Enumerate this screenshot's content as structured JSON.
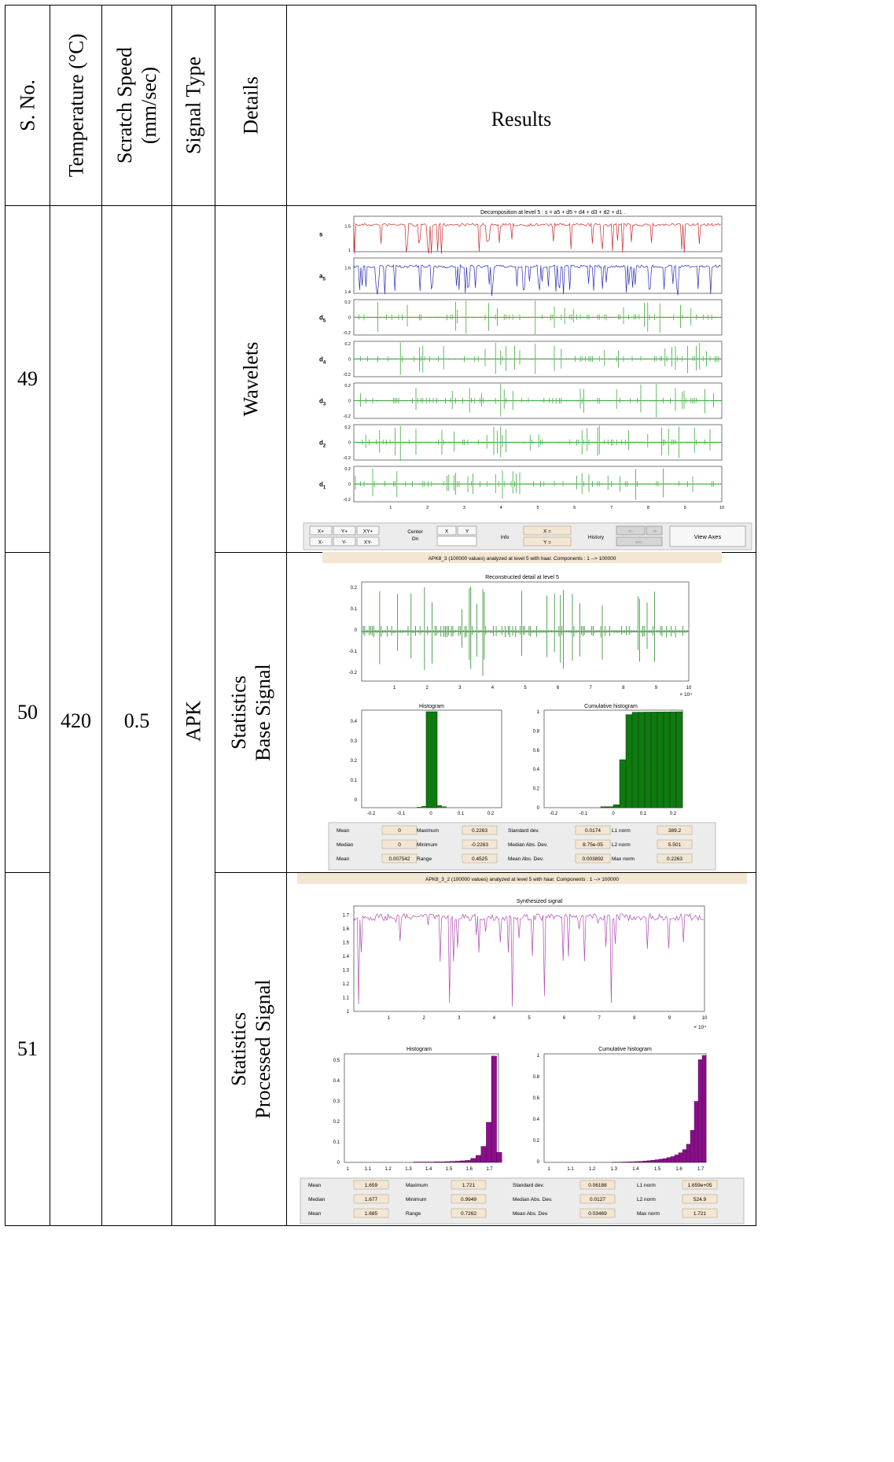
{
  "headers": {
    "sno": "S. No.",
    "temp": "Temperature (°C)",
    "speed1": "Scratch Speed",
    "speed2": "(mm/sec)",
    "signal": "Signal Type",
    "details": "Details",
    "results": "Results"
  },
  "rows": [
    {
      "sno": "49",
      "details": "Wavelets"
    },
    {
      "sno": "50",
      "details1": "Statistics",
      "details2": "Base Signal"
    },
    {
      "sno": "51",
      "details1": "Statistics",
      "details2": "Processed Signal"
    }
  ],
  "merged": {
    "temp": "420",
    "speed": "0.5",
    "signal": "APK"
  },
  "wavelet": {
    "title": "Decomposition at level 5 : s = a5 + d5 + d4 + d3 + d2 + d1 .",
    "labels": [
      "s",
      "a5",
      "d5",
      "d4",
      "d3",
      "d2",
      "d1"
    ],
    "xticks": [
      "1",
      "2",
      "3",
      "4",
      "5",
      "6",
      "7",
      "8",
      "9",
      "10"
    ],
    "colors": {
      "s": "#cc2a2a",
      "a5": "#2a2ab8",
      "d": "#1f9e1f"
    },
    "toolbar": {
      "xp": "X+",
      "yp": "Y+",
      "xyp": "XY+",
      "xm": "X-",
      "ym": "Y-",
      "xym": "XY-",
      "center": "Center",
      "on": "On",
      "x": "X",
      "y": "Y",
      "info": "Info",
      "xeq": "X =",
      "yeq": "Y =",
      "history": "History",
      "back": "<-",
      "fwd": "->",
      "back2": "<<-",
      "view": "View Axes"
    },
    "status": "APK8_3 (100000 values) analyzed at level 5 with haar.  Components :  1 --> 100000"
  },
  "base": {
    "title": "Reconstructed detail at level 5",
    "yticks": [
      "0.2",
      "0.1",
      "0",
      "-0.1",
      "-0.2"
    ],
    "xticks": [
      "1",
      "2",
      "3",
      "4",
      "5",
      "6",
      "7",
      "8",
      "9",
      "10"
    ],
    "exp": "× 10⁴",
    "hist_title": "Histogram",
    "cum_title": "Cumulative histogram",
    "hist_yticks": [
      "0.4",
      "0.3",
      "0.2",
      "0.1",
      "0"
    ],
    "cum_yticks": [
      "1",
      "0.8",
      "0.6",
      "0.4",
      "0.2",
      "0"
    ],
    "hist_xticks": [
      "-0.2",
      "-0.1",
      "0",
      "0.1",
      "0.2"
    ],
    "color": "#0f7a0f",
    "stats": [
      [
        "Mean",
        "0",
        "Maximum",
        "0.2263",
        "Standard dev.",
        "0.0174",
        "L1 norm",
        "389.2"
      ],
      [
        "Median",
        "0",
        "Minimum",
        "-0.2263",
        "Median Abs. Dev.",
        "8.75e-05",
        "L2 norm",
        "5.501"
      ],
      [
        "Mean",
        "0.007542",
        "Range",
        "0.4525",
        "Mean Abs. Dev.",
        "0.003892",
        "Max norm",
        "0.2263"
      ]
    ],
    "status": "APK8_3_2 (100000 values) analyzed at level 5 with haar.  Components :  1 --> 100000"
  },
  "proc": {
    "title": "Synthesized signal",
    "yticks": [
      "1.7",
      "1.6",
      "1.5",
      "1.4",
      "1.3",
      "1.2",
      "1.1",
      "1"
    ],
    "xticks": [
      "1",
      "2",
      "3",
      "4",
      "5",
      "6",
      "7",
      "8",
      "9",
      "10"
    ],
    "exp": "× 10⁴",
    "hist_title": "Histogram",
    "cum_title": "Cumulative histogram",
    "hist_yticks": [
      "0.5",
      "0.4",
      "0.3",
      "0.2",
      "0.1",
      "0"
    ],
    "cum_yticks": [
      "1",
      "0.8",
      "0.6",
      "0.4",
      "0.2",
      "0"
    ],
    "hist_xticks": [
      "1",
      "1.1",
      "1.2",
      "1.3",
      "1.4",
      "1.5",
      "1.6",
      "1.7"
    ],
    "color": "#b04bb0",
    "barcolor": "#8a0f8a",
    "stats": [
      [
        "Mean",
        "1.659",
        "Maximum",
        "1.721",
        "Standard dev.",
        "0.06188",
        "L1 norm",
        "1.659e+05"
      ],
      [
        "Median",
        "1.677",
        "Minimum",
        "0.9949",
        "Median Abs. Dev.",
        "0.0127",
        "L2 norm",
        "524.9"
      ],
      [
        "Mean",
        "1.685",
        "Range",
        "0.7262",
        "Mean Abs. Dev.",
        "0.03469",
        "Max norm",
        "1.721"
      ]
    ]
  }
}
